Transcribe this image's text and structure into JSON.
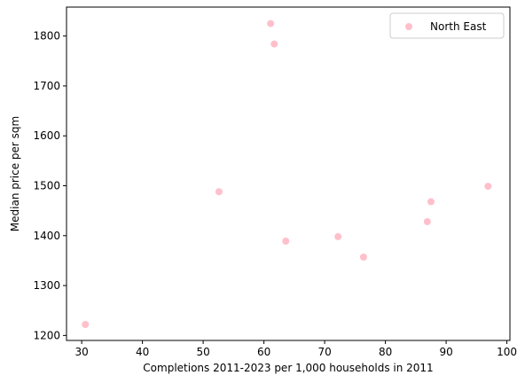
{
  "chart_data": {
    "type": "scatter",
    "xlabel": "Completions 2011-2023 per 1,000 households in 2011",
    "ylabel": "Median price per sqm",
    "xlim": [
      27.5,
      100.5
    ],
    "ylim": [
      1190,
      1858
    ],
    "x_ticks": [
      30,
      40,
      50,
      60,
      70,
      80,
      90,
      100
    ],
    "y_ticks": [
      1200,
      1300,
      1400,
      1500,
      1600,
      1700,
      1800
    ],
    "grid": false,
    "legend_position": "top-right",
    "series": [
      {
        "name": "North East",
        "color": "#ffc0cb",
        "points": [
          {
            "x": 30.6,
            "y": 1222
          },
          {
            "x": 52.6,
            "y": 1488
          },
          {
            "x": 61.1,
            "y": 1825
          },
          {
            "x": 61.7,
            "y": 1784
          },
          {
            "x": 63.6,
            "y": 1389
          },
          {
            "x": 72.2,
            "y": 1398
          },
          {
            "x": 76.4,
            "y": 1357
          },
          {
            "x": 86.9,
            "y": 1428
          },
          {
            "x": 87.5,
            "y": 1468
          },
          {
            "x": 96.9,
            "y": 1499
          }
        ]
      }
    ]
  }
}
